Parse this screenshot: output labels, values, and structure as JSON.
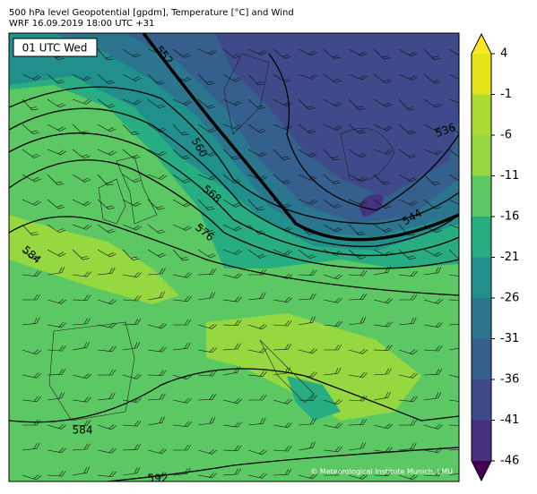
{
  "header": {
    "line1": "500 hPa level Geopotential [gpdm], Temperature [°C] and Wind",
    "line2": "WRF 16.09.2019 18:00 UTC +31"
  },
  "time_label": "01 UTC Wed",
  "contour_labels": [
    "552",
    "560",
    "568",
    "576",
    "584",
    "536",
    "544",
    "584",
    "592"
  ],
  "credit": "© Meteorological Institute Munich, LMU",
  "colorbar": {
    "ticks": [
      -46,
      -41,
      -36,
      -31,
      -26,
      -21,
      -16,
      -11,
      -6,
      -1,
      4
    ],
    "colors": [
      "#46317e",
      "#3e4a89",
      "#355f8d",
      "#2b758e",
      "#21908d",
      "#27ad81",
      "#5cc863",
      "#95d840",
      "#aadc32",
      "#e5e419"
    ],
    "under_color": "#440154",
    "over_color": "#fde725"
  }
}
